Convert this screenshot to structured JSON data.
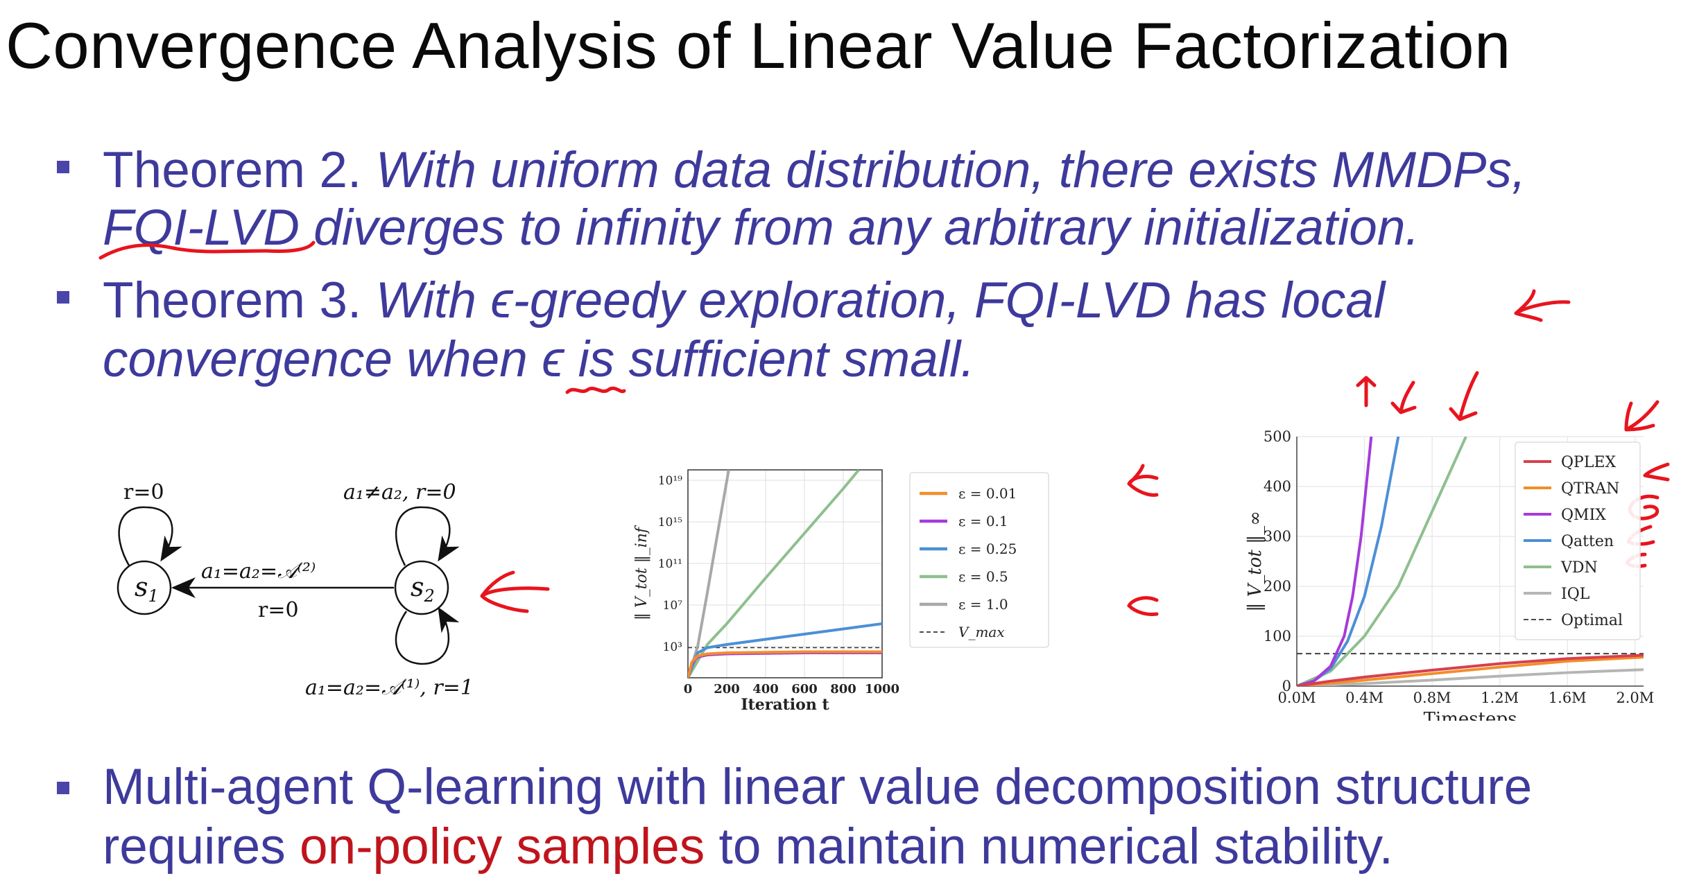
{
  "title": "Convergence Analysis of Linear Value Factorization",
  "bullets": [
    {
      "label": "Theorem 2.",
      "line1": "With uniform data distribution, there exists MMDPs,",
      "line2_underlined": "FQI-LVD",
      "line2_rest": " diverges to infinity from any arbitrary initialization."
    },
    {
      "label": "Theorem 3.",
      "line1_pre": "With ",
      "eps": "ϵ",
      "line1_post": "-greedy exploration, FQI-LVD has local",
      "line2_pre": "convergence when ",
      "line2_post": " is sufficient small."
    },
    {
      "line1": "Multi-agent Q-learning with linear value decomposition structure",
      "line2_pre": "requires ",
      "line2_highlight": "on-policy samples",
      "line2_post": " to maintain numerical stability."
    }
  ],
  "diagram": {
    "state1": "s",
    "state1_sub": "1",
    "state2": "s",
    "state2_sub": "2",
    "self_loop_s1": "r=0",
    "self_loop_s2_top": "a₁≠a₂, r=0",
    "transition_label": "a₁=a₂=𝒜⁽²⁾",
    "transition_reward": "r=0",
    "self_loop_s2_bottom": "a₁=a₂=𝒜⁽¹⁾, r=1"
  },
  "chart_data": [
    {
      "type": "line",
      "xlabel": "Iteration t",
      "ylabel": "‖ V_tot ‖_inf",
      "x_ticks": [
        "0",
        "200",
        "400",
        "600",
        "800",
        "1000"
      ],
      "y_ticks": [
        "10³",
        "10⁷",
        "10¹¹",
        "10¹⁵",
        "10¹⁹"
      ],
      "y_scale": "log",
      "xlim": [
        0,
        1000
      ],
      "ylim_log10": [
        0,
        20
      ],
      "grid": true,
      "legend_position": "right",
      "series": [
        {
          "name": "ε = 0.01",
          "color": "#f28e2b",
          "x": [
            0,
            20,
            50,
            100,
            200,
            400,
            600,
            800,
            1000
          ],
          "log10_y": [
            0,
            1.5,
            2.1,
            2.3,
            2.4,
            2.45,
            2.5,
            2.5,
            2.5
          ]
        },
        {
          "name": "ε = 0.1",
          "color": "#a63bd9",
          "x": [
            0,
            20,
            50,
            100,
            200,
            400,
            600,
            800,
            1000
          ],
          "log10_y": [
            0,
            1.4,
            2.0,
            2.2,
            2.3,
            2.35,
            2.4,
            2.4,
            2.4
          ]
        },
        {
          "name": "ε = 0.25",
          "color": "#4c8fd6",
          "x": [
            0,
            50,
            100,
            200,
            400,
            600,
            800,
            1000
          ],
          "log10_y": [
            0,
            2.4,
            2.9,
            3.2,
            3.7,
            4.2,
            4.7,
            5.2
          ]
        },
        {
          "name": "ε = 0.5",
          "color": "#8fbf8f",
          "x": [
            0,
            100,
            200,
            400,
            600,
            800,
            880
          ],
          "log10_y": [
            0,
            3.2,
            5.2,
            9.6,
            13.9,
            18.2,
            20
          ]
        },
        {
          "name": "ε = 1.0",
          "color": "#a8a8a8",
          "x": [
            0,
            50,
            100,
            150,
            210
          ],
          "log10_y": [
            0,
            3.0,
            8.2,
            13.6,
            20
          ]
        }
      ],
      "reference_line": {
        "name": "V_max",
        "log10_y": 2.9,
        "style": "dashed"
      }
    },
    {
      "type": "line",
      "xlabel": "Timesteps",
      "ylabel": "‖ V_tot ‖_∞",
      "x_ticks": [
        "0.0M",
        "0.4M",
        "0.8M",
        "1.2M",
        "1.6M",
        "2.0M"
      ],
      "y_ticks": [
        "0",
        "100",
        "200",
        "300",
        "400",
        "500"
      ],
      "xlim": [
        0,
        2.05
      ],
      "ylim": [
        0,
        500
      ],
      "grid": true,
      "legend_position": "top-right",
      "series": [
        {
          "name": "QPLEX",
          "color": "#d6404e",
          "x": [
            0,
            0.2,
            0.4,
            0.8,
            1.2,
            1.6,
            2.05
          ],
          "y": [
            0,
            10,
            18,
            32,
            45,
            55,
            62
          ]
        },
        {
          "name": "QTRAN",
          "color": "#f28e2b",
          "x": [
            0,
            0.4,
            0.8,
            1.2,
            1.6,
            2.05
          ],
          "y": [
            0,
            12,
            25,
            38,
            50,
            58
          ]
        },
        {
          "name": "QMIX",
          "color": "#a63bd9",
          "x": [
            0,
            0.1,
            0.2,
            0.28,
            0.33,
            0.38,
            0.44
          ],
          "y": [
            0,
            10,
            40,
            100,
            180,
            300,
            500
          ]
        },
        {
          "name": "Qatten",
          "color": "#4c8fd6",
          "x": [
            0,
            0.1,
            0.2,
            0.3,
            0.4,
            0.5,
            0.6
          ],
          "y": [
            0,
            10,
            35,
            90,
            180,
            320,
            500
          ]
        },
        {
          "name": "VDN",
          "color": "#8fbf8f",
          "x": [
            0,
            0.2,
            0.4,
            0.6,
            0.8,
            1.0
          ],
          "y": [
            0,
            30,
            100,
            200,
            350,
            500
          ]
        },
        {
          "name": "IQL",
          "color": "#b5b5b5",
          "x": [
            0,
            0.4,
            0.8,
            1.2,
            1.6,
            2.05
          ],
          "y": [
            0,
            5,
            12,
            20,
            27,
            33
          ]
        }
      ],
      "reference_line": {
        "name": "Optimal",
        "y": 65,
        "style": "dashed"
      }
    }
  ],
  "colors": {
    "bullet_text": "#3e3a9c",
    "highlight": "#c0141c",
    "annotation": "#e8141e"
  }
}
